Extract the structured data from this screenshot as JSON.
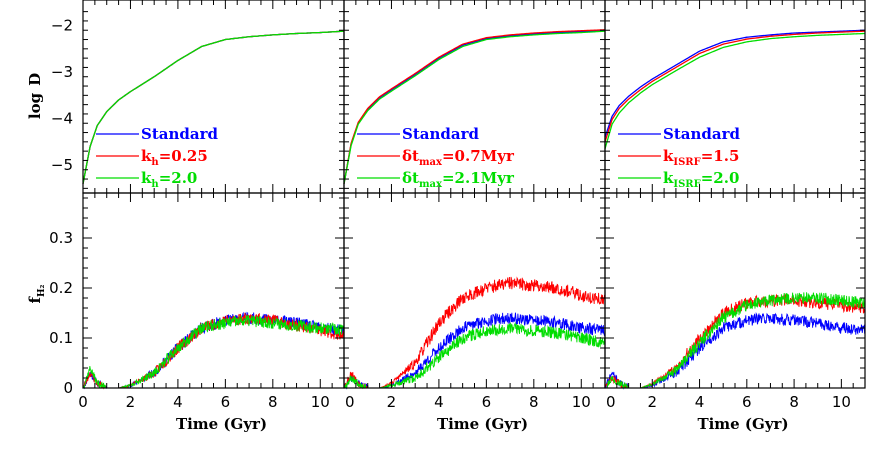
{
  "chart_data": {
    "type": "line",
    "x_label": "Time (Gyr)",
    "xlim": [
      0,
      11
    ],
    "x_ticks": [
      "0",
      "2",
      "4",
      "6",
      "8",
      "10"
    ],
    "top_row": {
      "ylabel_main": "log",
      "ylabel_symbol": "D",
      "ylim": [
        -5.6,
        -1.45
      ],
      "y_ticks": [
        "-2",
        "-3",
        "-4",
        "-5"
      ],
      "y_tick_values": [
        -2,
        -3,
        -4,
        -5
      ]
    },
    "bottom_row": {
      "ylabel_main": "f",
      "ylabel_sub": "H₂",
      "ylim": [
        0,
        0.39
      ],
      "y_ticks": [
        "0.3",
        "0.2",
        "0.1",
        "0"
      ],
      "y_tick_values": [
        0.3,
        0.2,
        0.1,
        0
      ]
    },
    "colors": {
      "blue": "#0000ff",
      "red": "#ff0000",
      "green": "#00dd00"
    },
    "panels": [
      {
        "legend": [
          {
            "name": "Standard",
            "main": "Standard",
            "sub": "",
            "suffix": "",
            "color": "#0000ff"
          },
          {
            "name": "k_h=0.25",
            "main": "k",
            "sub": "h",
            "suffix": "=0.25",
            "color": "#ff0000"
          },
          {
            "name": "k_h=2.0",
            "main": "k",
            "sub": "h",
            "suffix": "=2.0",
            "color": "#00dd00"
          }
        ],
        "logD": [
          {
            "color": "#0000ff",
            "x": [
              0,
              0.3,
              0.6,
              1,
              1.5,
              2,
              3,
              4,
              5,
              6,
              7,
              8,
              9,
              10,
              11
            ],
            "y": [
              -5.4,
              -4.6,
              -4.15,
              -3.85,
              -3.6,
              -3.42,
              -3.1,
              -2.75,
              -2.45,
              -2.3,
              -2.24,
              -2.2,
              -2.17,
              -2.15,
              -2.12
            ]
          },
          {
            "color": "#ff0000",
            "x": [
              0,
              0.3,
              0.6,
              1,
              1.5,
              2,
              3,
              4,
              5,
              6,
              7,
              8,
              9,
              10,
              11
            ],
            "y": [
              -5.4,
              -4.6,
              -4.15,
              -3.85,
              -3.6,
              -3.42,
              -3.1,
              -2.75,
              -2.45,
              -2.3,
              -2.24,
              -2.2,
              -2.17,
              -2.15,
              -2.12
            ]
          },
          {
            "color": "#00dd00",
            "x": [
              0,
              0.3,
              0.6,
              1,
              1.5,
              2,
              3,
              4,
              5,
              6,
              7,
              8,
              9,
              10,
              11
            ],
            "y": [
              -5.4,
              -4.6,
              -4.15,
              -3.85,
              -3.6,
              -3.42,
              -3.1,
              -2.75,
              -2.45,
              -2.3,
              -2.24,
              -2.2,
              -2.17,
              -2.15,
              -2.12
            ]
          }
        ],
        "fH2": [
          {
            "color": "#0000ff",
            "noise": 0.012,
            "seed": 11,
            "x": [
              0,
              0.3,
              0.6,
              1,
              1.5,
              2,
              3,
              4,
              5,
              6,
              7,
              8,
              9,
              10,
              11
            ],
            "y": [
              0,
              0.03,
              0.01,
              0,
              0,
              0.005,
              0.03,
              0.08,
              0.12,
              0.135,
              0.14,
              0.135,
              0.13,
              0.12,
              0.115
            ]
          },
          {
            "color": "#ff0000",
            "noise": 0.012,
            "seed": 23,
            "x": [
              0,
              0.3,
              0.6,
              1,
              1.5,
              2,
              3,
              4,
              5,
              6,
              7,
              8,
              9,
              10,
              11
            ],
            "y": [
              0,
              0.03,
              0.01,
              0,
              0,
              0.005,
              0.03,
              0.08,
              0.12,
              0.135,
              0.14,
              0.135,
              0.125,
              0.115,
              0.105
            ]
          },
          {
            "color": "#00dd00",
            "noise": 0.012,
            "seed": 37,
            "x": [
              0,
              0.3,
              0.6,
              1,
              1.5,
              2,
              3,
              4,
              5,
              6,
              7,
              8,
              9,
              10,
              11
            ],
            "y": [
              0,
              0.04,
              0.01,
              0,
              0,
              0.005,
              0.03,
              0.08,
              0.12,
              0.13,
              0.135,
              0.13,
              0.125,
              0.12,
              0.115
            ]
          }
        ]
      },
      {
        "legend": [
          {
            "name": "Standard",
            "main": "Standard",
            "sub": "",
            "suffix": "",
            "color": "#0000ff"
          },
          {
            "name": "δt_max=0.7Myr",
            "main": "δt",
            "sub": "max",
            "suffix": "=0.7Myr",
            "color": "#ff0000"
          },
          {
            "name": "δt_max=2.1Myr",
            "main": "δt",
            "sub": "max",
            "suffix": "=2.1Myr",
            "color": "#00dd00"
          }
        ],
        "logD": [
          {
            "color": "#0000ff",
            "x": [
              0,
              0.3,
              0.6,
              1,
              1.5,
              2,
              3,
              4,
              5,
              6,
              7,
              8,
              9,
              10,
              11
            ],
            "y": [
              -5.4,
              -4.55,
              -4.1,
              -3.8,
              -3.55,
              -3.38,
              -3.05,
              -2.7,
              -2.42,
              -2.28,
              -2.22,
              -2.18,
              -2.15,
              -2.13,
              -2.1
            ]
          },
          {
            "color": "#ff0000",
            "x": [
              0,
              0.3,
              0.6,
              1,
              1.5,
              2,
              3,
              4,
              5,
              6,
              7,
              8,
              9,
              10,
              11
            ],
            "y": [
              -5.4,
              -4.53,
              -4.08,
              -3.78,
              -3.53,
              -3.36,
              -3.03,
              -2.68,
              -2.4,
              -2.26,
              -2.2,
              -2.16,
              -2.13,
              -2.11,
              -2.09
            ]
          },
          {
            "color": "#00dd00",
            "x": [
              0,
              0.3,
              0.6,
              1,
              1.5,
              2,
              3,
              4,
              5,
              6,
              7,
              8,
              9,
              10,
              11
            ],
            "y": [
              -5.4,
              -4.58,
              -4.12,
              -3.83,
              -3.58,
              -3.41,
              -3.08,
              -2.73,
              -2.45,
              -2.3,
              -2.24,
              -2.2,
              -2.17,
              -2.15,
              -2.12
            ]
          }
        ],
        "fH2": [
          {
            "color": "#0000ff",
            "noise": 0.012,
            "seed": 41,
            "x": [
              0,
              0.3,
              0.6,
              1,
              1.5,
              2,
              3,
              4,
              5,
              6,
              7,
              8,
              9,
              10,
              11
            ],
            "y": [
              0,
              0.02,
              0.01,
              0,
              0,
              0.005,
              0.03,
              0.08,
              0.12,
              0.135,
              0.14,
              0.135,
              0.13,
              0.12,
              0.115
            ]
          },
          {
            "color": "#ff0000",
            "noise": 0.013,
            "seed": 53,
            "x": [
              0,
              0.3,
              0.6,
              1,
              1.5,
              2,
              3,
              4,
              5,
              6,
              7,
              8,
              9,
              10,
              11
            ],
            "y": [
              0,
              0.03,
              0.01,
              0,
              0,
              0.01,
              0.05,
              0.13,
              0.18,
              0.2,
              0.21,
              0.205,
              0.2,
              0.185,
              0.175
            ]
          },
          {
            "color": "#00dd00",
            "noise": 0.012,
            "seed": 67,
            "x": [
              0,
              0.3,
              0.6,
              1,
              1.5,
              2,
              3,
              4,
              5,
              6,
              7,
              8,
              9,
              10,
              11
            ],
            "y": [
              0,
              0.02,
              0.01,
              0,
              0,
              0.005,
              0.02,
              0.06,
              0.1,
              0.115,
              0.12,
              0.115,
              0.11,
              0.1,
              0.09
            ]
          }
        ]
      },
      {
        "legend": [
          {
            "name": "Standard",
            "main": "Standard",
            "sub": "",
            "suffix": "",
            "color": "#0000ff"
          },
          {
            "name": "k_ISRF=1.5",
            "main": "k",
            "sub": "ISRF",
            "suffix": "=1.5",
            "color": "#ff0000"
          },
          {
            "name": "k_ISRF=2.0",
            "main": "k",
            "sub": "ISRF",
            "suffix": "=2.0",
            "color": "#00dd00"
          }
        ],
        "logD": [
          {
            "color": "#0000ff",
            "x": [
              0,
              0.3,
              0.6,
              1,
              1.5,
              2,
              3,
              4,
              5,
              6,
              7,
              8,
              9,
              10,
              11
            ],
            "y": [
              -4.4,
              -3.95,
              -3.72,
              -3.52,
              -3.32,
              -3.15,
              -2.85,
              -2.55,
              -2.35,
              -2.25,
              -2.2,
              -2.16,
              -2.14,
              -2.12,
              -2.1
            ]
          },
          {
            "color": "#ff0000",
            "x": [
              0,
              0.3,
              0.6,
              1,
              1.5,
              2,
              3,
              4,
              5,
              6,
              7,
              8,
              9,
              10,
              11
            ],
            "y": [
              -4.5,
              -4.02,
              -3.78,
              -3.58,
              -3.38,
              -3.2,
              -2.9,
              -2.6,
              -2.4,
              -2.29,
              -2.23,
              -2.19,
              -2.16,
              -2.14,
              -2.12
            ]
          },
          {
            "color": "#00dd00",
            "x": [
              0,
              0.3,
              0.6,
              1,
              1.5,
              2,
              3,
              4,
              5,
              6,
              7,
              8,
              9,
              10,
              11
            ],
            "y": [
              -4.65,
              -4.12,
              -3.88,
              -3.66,
              -3.45,
              -3.27,
              -2.97,
              -2.68,
              -2.47,
              -2.35,
              -2.28,
              -2.24,
              -2.21,
              -2.19,
              -2.17
            ]
          }
        ],
        "fH2": [
          {
            "color": "#0000ff",
            "noise": 0.012,
            "seed": 71,
            "x": [
              0,
              0.3,
              0.6,
              1,
              1.5,
              2,
              3,
              4,
              5,
              6,
              7,
              8,
              9,
              10,
              11
            ],
            "y": [
              0,
              0.03,
              0.01,
              0,
              0,
              0.005,
              0.03,
              0.08,
              0.12,
              0.135,
              0.14,
              0.135,
              0.13,
              0.12,
              0.115
            ]
          },
          {
            "color": "#ff0000",
            "noise": 0.012,
            "seed": 83,
            "x": [
              0,
              0.3,
              0.6,
              1,
              1.5,
              2,
              3,
              4,
              5,
              6,
              7,
              8,
              9,
              10,
              11
            ],
            "y": [
              0,
              0.02,
              0.01,
              0,
              0,
              0.008,
              0.04,
              0.1,
              0.15,
              0.17,
              0.175,
              0.175,
              0.17,
              0.165,
              0.16
            ]
          },
          {
            "color": "#00dd00",
            "noise": 0.012,
            "seed": 97,
            "x": [
              0,
              0.3,
              0.6,
              1,
              1.5,
              2,
              3,
              4,
              5,
              6,
              7,
              8,
              9,
              10,
              11
            ],
            "y": [
              0,
              0.02,
              0.01,
              0,
              0,
              0.007,
              0.035,
              0.09,
              0.14,
              0.165,
              0.175,
              0.18,
              0.18,
              0.175,
              0.17
            ]
          }
        ]
      }
    ]
  }
}
